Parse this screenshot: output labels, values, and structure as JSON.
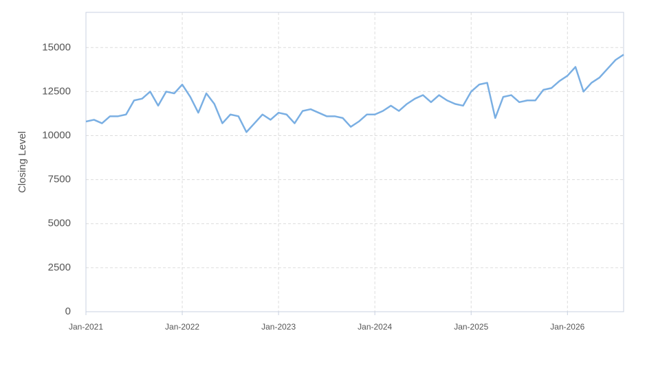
{
  "chart_data": {
    "type": "line",
    "y_label": "Closing Level",
    "x": [
      "Jan-2021",
      "Feb-2021",
      "Mar-2021",
      "Apr-2021",
      "May-2021",
      "Jun-2021",
      "Jul-2021",
      "Aug-2021",
      "Sep-2021",
      "Oct-2021",
      "Nov-2021",
      "Dec-2021",
      "Jan-2022",
      "Feb-2022",
      "Mar-2022",
      "Apr-2022",
      "May-2022",
      "Jun-2022",
      "Jul-2022",
      "Aug-2022",
      "Sep-2022",
      "Oct-2022",
      "Nov-2022",
      "Dec-2022",
      "Jan-2023",
      "Feb-2023",
      "Mar-2023",
      "Apr-2023",
      "May-2023",
      "Jun-2023",
      "Jul-2023",
      "Aug-2023",
      "Sep-2023",
      "Oct-2023",
      "Nov-2023",
      "Dec-2023",
      "Jan-2024",
      "Feb-2024",
      "Mar-2024",
      "Apr-2024",
      "May-2024",
      "Jun-2024",
      "Jul-2024",
      "Aug-2024",
      "Sep-2024",
      "Oct-2024",
      "Nov-2024",
      "Dec-2024",
      "Jan-2025",
      "Feb-2025",
      "Mar-2025",
      "Apr-2025",
      "May-2025",
      "Jun-2025",
      "Jul-2025",
      "Aug-2025",
      "Sep-2025",
      "Oct-2025",
      "Nov-2025",
      "Dec-2025",
      "Jan-2026",
      "Feb-2026",
      "Mar-2026",
      "Apr-2026",
      "May-2026",
      "Jun-2026",
      "Jul-2026",
      "Aug-2026"
    ],
    "series": [
      {
        "color": "#7aafe3",
        "values": [
          10800,
          10900,
          10700,
          11100,
          11100,
          11200,
          12000,
          12100,
          12500,
          11700,
          12500,
          12400,
          12900,
          12200,
          11300,
          12400,
          11800,
          10700,
          11200,
          11100,
          10200,
          10700,
          11200,
          10900,
          11300,
          11200,
          10700,
          11400,
          11500,
          11300,
          11100,
          11100,
          11000,
          10500,
          10800,
          11200,
          11200,
          11400,
          11700,
          11400,
          11800,
          12100,
          12300,
          11900,
          12300,
          12000,
          11800,
          11700,
          12500,
          12900,
          13000,
          11000,
          12200,
          12300,
          11900,
          12000,
          12000,
          12600,
          12700,
          13100,
          13400,
          13900,
          12500,
          13000,
          13300,
          13800,
          14300,
          14600
        ]
      }
    ],
    "xticks": [
      "Jan-2021",
      "Jan-2022",
      "Jan-2023",
      "Jan-2024",
      "Jan-2025",
      "Jan-2026"
    ],
    "ylim": [
      0,
      17000
    ],
    "yticks": [
      0,
      2500,
      5000,
      7500,
      10000,
      12500,
      15000
    ],
    "grid": true
  }
}
